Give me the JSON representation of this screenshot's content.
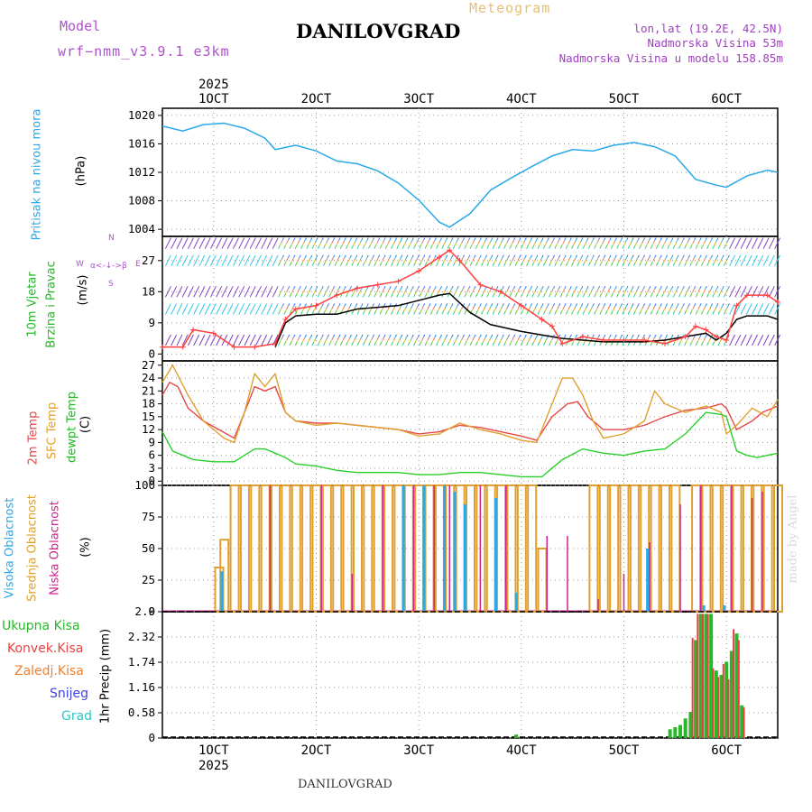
{
  "header": {
    "model_label": "Model",
    "model_name": "wrf−nmm_v3.9.1  e3km",
    "meteogram_label": "Meteogram",
    "station": "DANILOVGRAD",
    "lonlat": "lon,lat (19.2E, 42.5N)",
    "elevation": "Nadmorska Visina 53m",
    "model_elevation": "Nadmorska Visina u modelu 158.85m",
    "watermark": "made by Angel",
    "footer_station": "DANILOVGRAD"
  },
  "colors": {
    "model": "#b050d0",
    "meteogram": "#e8c070",
    "station": "#000000",
    "info": "#a040c0",
    "pressure": "#2aa8e8",
    "wind_label": "#22b822",
    "temp2m": "#e84848",
    "sfc": "#e0a030",
    "dewpt": "#2ad02a",
    "cloud_high": "#2aa8e8",
    "cloud_mid": "#e0a030",
    "cloud_low": "#d02090",
    "grid": "#999999"
  },
  "panel_labels": {
    "pressure": {
      "title": "Pritisak na nivou mora",
      "unit": "(hPa)"
    },
    "wind": {
      "line1": "10m Vjetar",
      "line2": "Brzina i Pravac",
      "unit": "(m/s)",
      "compass_top": "N",
      "compass_left": "W",
      "compass_right": "E",
      "compass_bottom": "S",
      "compass_sub": "α<-↓->β"
    },
    "temp": {
      "line1": "2m Temp",
      "line2": "SFC Temp",
      "line3": "dewpt Temp",
      "unit": "(C)"
    },
    "cloud": {
      "line1": "Visoka Oblacnost",
      "line2": "Srednja Oblacnost",
      "line3": "Niska Oblacnost",
      "unit": "(%)"
    },
    "precip": {
      "legend": [
        {
          "label": "Ukupna Kisa",
          "color": "#2ab82a"
        },
        {
          "label": "Konvek.Kisa",
          "color": "#e84040"
        },
        {
          "label": "Zaledj.Kisa",
          "color": "#f08030"
        },
        {
          "label": "Snijeg",
          "color": "#4040e0"
        },
        {
          "label": "Grad",
          "color": "#2ac8c8"
        }
      ],
      "unit": "1hr Precip (mm)"
    }
  },
  "chart_data": [
    {
      "type": "line",
      "name": "sea-level-pressure",
      "title": "Pritisak na nivou mora",
      "ylabel": "(hPa)",
      "x_range": [
        5,
        65
      ],
      "ylim": [
        1003,
        1021
      ],
      "yticks": [
        "1004",
        "1008",
        "1012",
        "1016",
        "1020"
      ],
      "ytick_values": [
        1004,
        1008,
        1012,
        1016,
        1020
      ],
      "top_axis": {
        "year": "2025",
        "ticks": [
          "1OCT",
          "2OCT",
          "3OCT",
          "4OCT",
          "5OCT",
          "6OCT"
        ],
        "tick_hours": [
          10,
          20,
          30,
          40,
          50,
          60
        ]
      },
      "x": [
        5,
        7,
        9,
        11,
        13,
        15,
        16,
        18,
        20,
        22,
        24,
        26,
        28,
        30,
        32,
        33,
        35,
        37,
        39,
        41,
        43,
        45,
        47,
        49,
        51,
        53,
        55,
        57,
        59,
        60,
        62,
        64,
        65
      ],
      "values": [
        1018.5,
        1017.8,
        1018.7,
        1018.9,
        1018.2,
        1016.8,
        1015.2,
        1015.8,
        1015.0,
        1013.6,
        1013.2,
        1012.2,
        1010.5,
        1008.1,
        1005.0,
        1004.3,
        1006.2,
        1009.5,
        1011.2,
        1012.8,
        1014.3,
        1015.2,
        1015.0,
        1015.8,
        1016.2,
        1015.6,
        1014.3,
        1011.0,
        1010.2,
        1009.9,
        1011.5,
        1012.3,
        1012.0
      ]
    },
    {
      "type": "line",
      "name": "wind-speed",
      "title": "10m Vjetar Brzina i Pravac",
      "ylabel": "(m/s)",
      "x_range": [
        5,
        65
      ],
      "ylim": [
        -2,
        34
      ],
      "yticks": [
        "0",
        "9",
        "18",
        "27"
      ],
      "ytick_values": [
        0,
        9,
        18,
        27
      ],
      "barb_rows": [
        4,
        13,
        18,
        27,
        32
      ],
      "series": [
        {
          "name": "mean",
          "color": "#000000",
          "x": [
            16,
            17,
            18,
            20,
            22,
            24,
            26,
            28,
            30,
            32,
            33,
            35,
            37,
            40,
            42,
            44,
            46,
            48,
            50,
            52,
            54,
            56,
            58,
            59,
            60,
            61,
            62,
            64,
            65
          ],
          "values": [
            2,
            9,
            11,
            11.5,
            11.5,
            13,
            13.5,
            14,
            15.5,
            17,
            17.5,
            12,
            8.5,
            6.5,
            5.5,
            4.5,
            4,
            3.5,
            3.5,
            3.5,
            4,
            5,
            6,
            4,
            6,
            10,
            11,
            11,
            10
          ]
        },
        {
          "name": "gust",
          "color": "#ff4040",
          "x": [
            5,
            7,
            8,
            10,
            12,
            14,
            16,
            17,
            18,
            20,
            22,
            24,
            26,
            28,
            30,
            32,
            33,
            34,
            36,
            38,
            40,
            42,
            43,
            44,
            46,
            48,
            50,
            52,
            54,
            56,
            57,
            58,
            59,
            60,
            61,
            62,
            64,
            65
          ],
          "values": [
            2,
            2,
            7,
            6,
            2,
            2,
            3,
            10,
            13,
            14,
            17,
            19,
            20,
            21,
            24,
            28,
            30,
            27,
            20,
            18,
            14,
            10,
            8,
            3,
            5,
            4,
            4,
            4,
            3,
            5,
            8,
            7,
            5,
            4,
            14,
            17,
            17,
            15
          ]
        }
      ]
    },
    {
      "type": "line",
      "name": "temperature",
      "title": "2m Temp / SFC Temp / dewpt Temp",
      "ylabel": "(C)",
      "x_range": [
        5,
        65
      ],
      "ylim": [
        -1,
        28
      ],
      "yticks": [
        "0",
        "3",
        "6",
        "9",
        "12",
        "15",
        "18",
        "21",
        "24",
        "27"
      ],
      "ytick_values": [
        0,
        3,
        6,
        9,
        12,
        15,
        18,
        21,
        24,
        27
      ],
      "series": [
        {
          "name": "2m Temp",
          "color": "#e84848",
          "x": [
            5,
            5.7,
            6.5,
            7.5,
            9,
            10.5,
            12,
            13,
            14,
            15,
            16,
            17,
            18,
            20,
            22,
            24,
            26,
            28,
            30,
            32,
            34,
            36,
            38,
            40,
            41.5,
            43,
            44.5,
            45.5,
            46.5,
            48,
            50,
            52,
            54,
            56,
            58,
            59.5,
            60,
            61,
            62.5,
            63.5,
            65
          ],
          "values": [
            20,
            23,
            22,
            17,
            14,
            12,
            10,
            16,
            22,
            21,
            22,
            16,
            14,
            13.5,
            13.5,
            13,
            12.5,
            12,
            11,
            11.5,
            13,
            12.5,
            11.5,
            10.5,
            9.5,
            15,
            18,
            18.5,
            15,
            12,
            12,
            13,
            15,
            16.5,
            17,
            18,
            17,
            12,
            14,
            16,
            17.5
          ]
        },
        {
          "name": "SFC Temp",
          "color": "#e0a030",
          "x": [
            5,
            6,
            7.5,
            9,
            11,
            12,
            13,
            14,
            15,
            16,
            17,
            18,
            20,
            22,
            24,
            26,
            28,
            30,
            32,
            34,
            36,
            38,
            40,
            41.5,
            43,
            44,
            45,
            46,
            47,
            48,
            50,
            52,
            53,
            54,
            56,
            58,
            59.5,
            60,
            61,
            62.5,
            64,
            65
          ],
          "values": [
            23,
            27,
            20,
            14,
            10,
            9,
            16,
            25,
            22,
            25,
            16,
            14,
            13,
            13.5,
            13,
            12.5,
            12,
            10.5,
            11,
            13.5,
            12,
            11,
            9.5,
            9,
            18,
            24,
            24,
            20,
            14,
            10,
            11,
            14,
            21,
            18,
            16,
            17.5,
            16,
            11,
            13,
            17,
            15,
            19
          ]
        },
        {
          "name": "dewpt Temp",
          "color": "#2ad02a",
          "x": [
            5,
            6,
            8,
            10,
            12,
            14,
            15,
            16,
            17,
            18,
            20,
            22,
            24,
            26,
            28,
            30,
            32,
            34,
            36,
            38,
            40,
            42,
            43,
            44,
            46,
            48,
            50,
            52,
            54,
            56,
            58,
            59.5,
            60,
            61,
            62,
            63,
            65
          ],
          "values": [
            11.5,
            7,
            5,
            4.5,
            4.5,
            7.5,
            7.5,
            6.5,
            5.5,
            4,
            3.5,
            2.5,
            2,
            2,
            2,
            1.5,
            1.5,
            2,
            2,
            1.5,
            1,
            1,
            3,
            5,
            7.5,
            6.5,
            6,
            7,
            7.5,
            11,
            16,
            15.5,
            15,
            7,
            6,
            5.5,
            6.5
          ]
        }
      ]
    },
    {
      "type": "bar",
      "name": "cloud-cover",
      "title": "Visoka / Srednja / Niska Oblacnost",
      "ylabel": "(%)",
      "x_range": [
        5,
        65
      ],
      "ylim": [
        0,
        100
      ],
      "yticks": [
        "0",
        "25",
        "50",
        "75",
        "100"
      ],
      "ytick_values": [
        0,
        25,
        50,
        75,
        100
      ],
      "series": [
        {
          "name": "Srednja Oblacnost",
          "color": "#e0a030",
          "x": [
            10.5,
            11,
            12,
            13,
            14,
            15,
            16,
            17,
            18,
            19,
            20,
            21,
            22,
            23,
            24,
            25,
            26,
            27,
            28,
            29,
            30,
            31,
            32,
            33,
            34,
            35,
            36,
            37,
            38,
            39,
            40,
            41,
            42,
            47,
            48,
            49,
            50,
            51,
            52,
            53,
            54,
            55,
            57,
            58,
            59,
            60,
            61,
            62,
            63,
            64,
            65
          ],
          "values": [
            35,
            57,
            100,
            100,
            100,
            100,
            100,
            100,
            100,
            100,
            100,
            100,
            100,
            100,
            100,
            100,
            100,
            100,
            100,
            100,
            100,
            100,
            100,
            100,
            100,
            100,
            100,
            100,
            100,
            100,
            100,
            100,
            50,
            100,
            100,
            100,
            100,
            100,
            100,
            100,
            100,
            100,
            100,
            100,
            100,
            100,
            100,
            100,
            100,
            100,
            100
          ]
        },
        {
          "name": "Niska Oblacnost",
          "color": "#d02090",
          "x": [
            15.5,
            20.5,
            23.5,
            26.5,
            29.5,
            31.5,
            33,
            36,
            38.5,
            42.5,
            44.5,
            47.5,
            50,
            52.5,
            55.5,
            57.5,
            60.5,
            62.5,
            63.5
          ],
          "values": [
            100,
            100,
            30,
            100,
            100,
            100,
            100,
            100,
            100,
            60,
            60,
            10,
            30,
            55,
            85,
            100,
            100,
            90,
            95
          ]
        },
        {
          "name": "Visoka Oblacnost",
          "color": "#2aa8e8",
          "x": [
            10.8,
            28.5,
            30.5,
            32.5,
            33.5,
            34.5,
            37.5,
            39.5,
            52.3,
            57.8,
            59.8
          ],
          "values": [
            32,
            100,
            100,
            100,
            95,
            85,
            90,
            15,
            50,
            5,
            5
          ]
        }
      ]
    },
    {
      "type": "bar",
      "name": "precipitation",
      "title": "1hr Precip",
      "ylabel": "1hr Precip (mm)",
      "x_range": [
        5,
        65
      ],
      "ylim": [
        0,
        2.9
      ],
      "yticks": [
        "0",
        "0.58",
        "1.16",
        "1.74",
        "2.32",
        "2.9"
      ],
      "ytick_values": [
        0,
        0.58,
        1.16,
        1.74,
        2.32,
        2.9
      ],
      "bottom_axis": {
        "year": "2025",
        "ticks": [
          "1OCT",
          "2OCT",
          "3OCT",
          "4OCT",
          "5OCT",
          "6OCT"
        ],
        "tick_hours": [
          10,
          20,
          30,
          40,
          50,
          60
        ]
      },
      "series": [
        {
          "name": "Ukupna Kisa",
          "color": "#2ab82a",
          "x": [
            39.5,
            54.5,
            55,
            55.5,
            56,
            56.5,
            57,
            57.5,
            58,
            58.5,
            59,
            59.5,
            60,
            60.5,
            61,
            61.5
          ],
          "values": [
            0.08,
            0.2,
            0.25,
            0.3,
            0.45,
            0.6,
            2.25,
            2.85,
            2.85,
            2.85,
            1.55,
            1.45,
            1.75,
            2.0,
            2.4,
            0.75
          ]
        },
        {
          "name": "Konvek.Kisa",
          "color": "#e84040",
          "x": [
            56.7,
            57.2,
            57.7,
            58.2,
            58.7,
            59.2,
            59.7,
            60.2,
            60.7,
            61.2,
            61.7
          ],
          "values": [
            2.3,
            2.85,
            2.85,
            2.85,
            1.6,
            1.4,
            1.7,
            1.35,
            2.5,
            2.25,
            0.7
          ]
        }
      ]
    }
  ]
}
